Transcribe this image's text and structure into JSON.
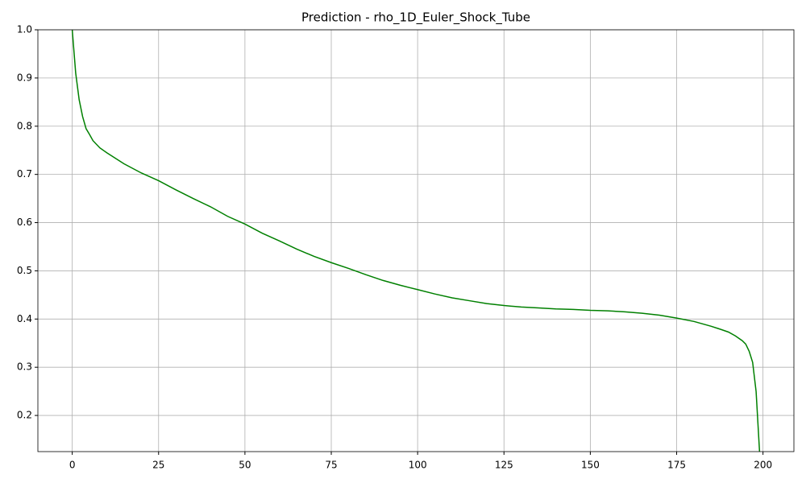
{
  "chart_data": {
    "type": "line",
    "title": "Prediction - rho_1D_Euler_Shock_Tube",
    "x": [
      0,
      1,
      2,
      3,
      4,
      5,
      6,
      8,
      10,
      15,
      20,
      25,
      30,
      35,
      40,
      45,
      50,
      55,
      60,
      65,
      70,
      75,
      80,
      85,
      90,
      95,
      100,
      105,
      110,
      115,
      120,
      125,
      130,
      135,
      140,
      145,
      150,
      155,
      160,
      165,
      170,
      175,
      180,
      185,
      188,
      190,
      192,
      194,
      195,
      196,
      197,
      198,
      199
    ],
    "series": [
      {
        "color": "#008000",
        "values": [
          1.0,
          0.91,
          0.855,
          0.82,
          0.795,
          0.783,
          0.77,
          0.755,
          0.745,
          0.722,
          0.703,
          0.687,
          0.668,
          0.65,
          0.633,
          0.613,
          0.597,
          0.578,
          0.562,
          0.545,
          0.53,
          0.517,
          0.505,
          0.492,
          0.48,
          0.47,
          0.461,
          0.452,
          0.444,
          0.438,
          0.432,
          0.428,
          0.425,
          0.423,
          0.421,
          0.42,
          0.418,
          0.417,
          0.415,
          0.412,
          0.408,
          0.402,
          0.395,
          0.385,
          0.378,
          0.373,
          0.365,
          0.355,
          0.348,
          0.333,
          0.31,
          0.25,
          0.125
        ]
      }
    ],
    "xlim": [
      -9.95,
      208.95
    ],
    "ylim": [
      0.125,
      1.0
    ],
    "xticks": [
      0,
      25,
      50,
      75,
      100,
      125,
      150,
      175,
      200
    ],
    "yticks": [
      0.2,
      0.3,
      0.4,
      0.5,
      0.6,
      0.7,
      0.8,
      0.9,
      {
        "value": 1,
        "label": "1.0"
      }
    ],
    "grid": true
  }
}
